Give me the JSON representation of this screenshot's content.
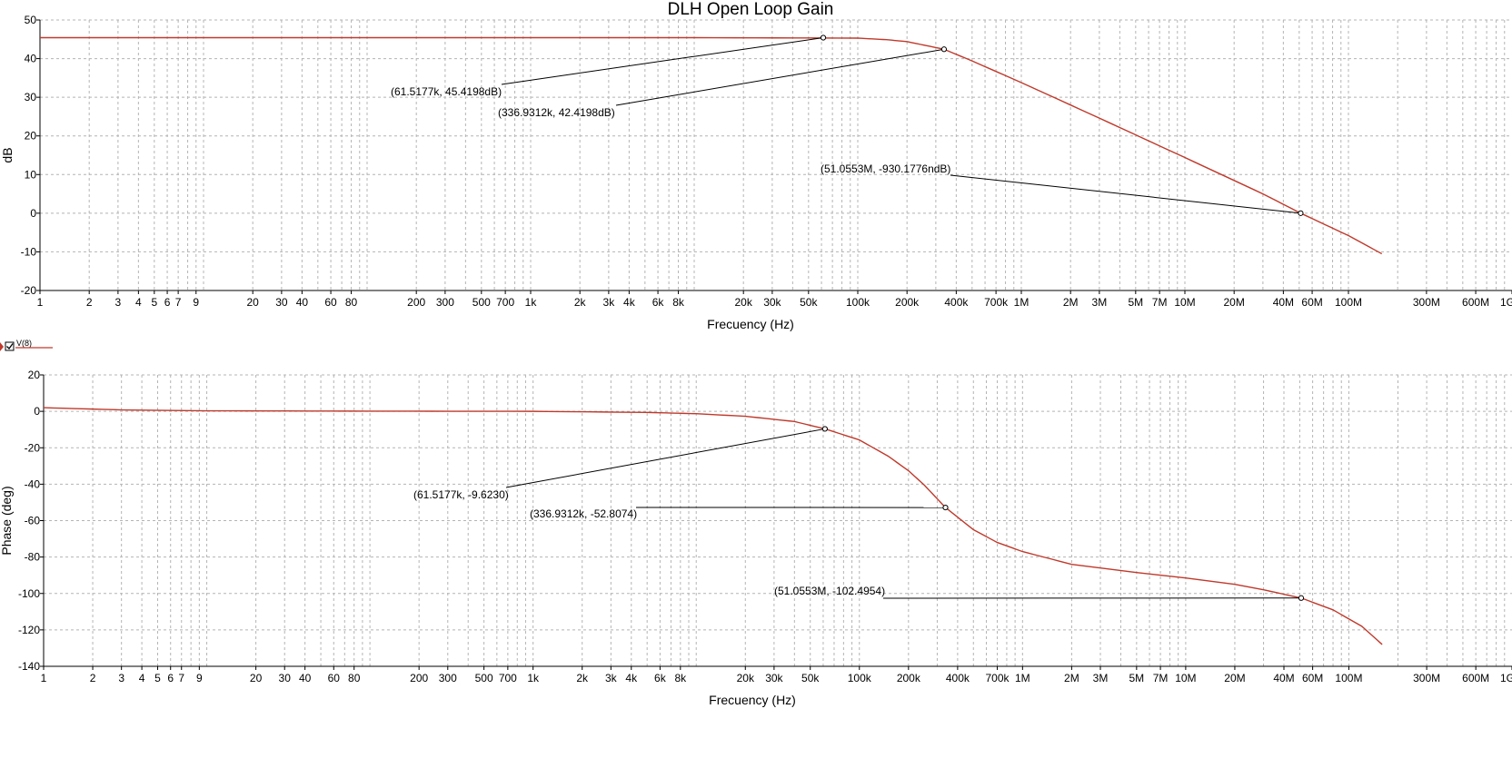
{
  "chart_data": [
    {
      "type": "line",
      "title": "DLH Open Loop Gain",
      "xlabel": "Frecuency (Hz)",
      "ylabel": "dB",
      "xscale": "log",
      "xlim": [
        1,
        1000000000
      ],
      "ylim": [
        -20,
        50
      ],
      "grid": true,
      "x_tick_values": [
        1,
        2,
        3,
        4,
        5,
        6,
        7,
        9,
        20,
        30,
        40,
        60,
        80,
        200,
        300,
        500,
        700,
        1000,
        2000,
        3000,
        4000,
        6000,
        8000,
        20000,
        30000,
        50000,
        100000,
        200000,
        400000,
        700000,
        1000000,
        2000000,
        3000000,
        5000000,
        7000000,
        10000000,
        20000000,
        40000000,
        60000000,
        100000000,
        300000000,
        600000000,
        1000000000
      ],
      "x_tick_labels": [
        "1",
        "2",
        "3",
        "4",
        "5",
        "6",
        "7",
        "9",
        "20",
        "30",
        "40",
        "60",
        "80",
        "200",
        "300",
        "500",
        "700",
        "1k",
        "2k",
        "3k",
        "4k",
        "6k",
        "8k",
        "20k",
        "30k",
        "50k",
        "100k",
        "200k",
        "400k",
        "700k",
        "1M",
        "2M",
        "3M",
        "5M",
        "7M",
        "10M",
        "20M",
        "40M",
        "60M",
        "100M",
        "300M",
        "600M",
        "1G"
      ],
      "y_tick_values": [
        50,
        40,
        30,
        20,
        10,
        0,
        -10,
        -20
      ],
      "y_tick_labels": [
        "50",
        "40",
        "30",
        "20",
        "10",
        "0",
        "-10",
        "-20"
      ],
      "series": [
        {
          "name": "V(8)",
          "color": "#c0392b",
          "x": [
            1,
            10,
            100,
            1000,
            10000,
            100000,
            150000,
            200000,
            336931,
            500000,
            1000000,
            3000000,
            10000000,
            30000000,
            51055300,
            100000000,
            160000000
          ],
          "values": [
            45.42,
            45.42,
            45.42,
            45.42,
            45.42,
            45.3,
            44.9,
            44.4,
            42.42,
            39.4,
            33.8,
            24.6,
            14.4,
            5.0,
            0.0,
            -5.8,
            -10.5
          ]
        }
      ],
      "annotations": [
        {
          "x": 61517.7,
          "y": 45.4198,
          "label": "(61.5177k, 45.4198dB)"
        },
        {
          "x": 336931.2,
          "y": 42.4198,
          "label": "(336.9312k, 42.4198dB)"
        },
        {
          "x": 51055300,
          "y": 0,
          "label": "(51.0553M, -930.1776ndB)"
        }
      ],
      "legend": {
        "entries": [
          "V(8)"
        ],
        "placement": "bottom-left"
      }
    },
    {
      "type": "line",
      "title": "",
      "xlabel": "Frecuency (Hz)",
      "ylabel": "Phase (deg)",
      "xscale": "log",
      "xlim": [
        1,
        1000000000
      ],
      "ylim": [
        -140,
        20
      ],
      "grid": true,
      "x_tick_values": [
        1,
        2,
        3,
        4,
        5,
        6,
        7,
        9,
        20,
        30,
        40,
        60,
        80,
        200,
        300,
        500,
        700,
        1000,
        2000,
        3000,
        4000,
        6000,
        8000,
        20000,
        30000,
        50000,
        100000,
        200000,
        400000,
        700000,
        1000000,
        2000000,
        3000000,
        5000000,
        7000000,
        10000000,
        20000000,
        40000000,
        60000000,
        100000000,
        300000000,
        600000000,
        1000000000
      ],
      "x_tick_labels": [
        "1",
        "2",
        "3",
        "4",
        "5",
        "6",
        "7",
        "9",
        "20",
        "30",
        "40",
        "60",
        "80",
        "200",
        "300",
        "500",
        "700",
        "1k",
        "2k",
        "3k",
        "4k",
        "6k",
        "8k",
        "20k",
        "30k",
        "50k",
        "100k",
        "200k",
        "400k",
        "700k",
        "1M",
        "2M",
        "3M",
        "5M",
        "7M",
        "10M",
        "20M",
        "40M",
        "60M",
        "100M",
        "300M",
        "600M",
        "1G"
      ],
      "y_tick_values": [
        20,
        0,
        -20,
        -40,
        -60,
        -80,
        -100,
        -120,
        -140
      ],
      "y_tick_labels": [
        "20",
        "0",
        "-20",
        "-40",
        "-60",
        "-80",
        "-100",
        "-120",
        "-140"
      ],
      "series": [
        {
          "name": "V(8)",
          "color": "#c0392b",
          "x": [
            1,
            3,
            10,
            100,
            1000,
            5000,
            10000,
            20000,
            40000,
            61517.7,
            100000,
            150000,
            200000,
            250000,
            336931.2,
            500000,
            700000,
            1000000,
            2000000,
            5000000,
            10000000,
            20000000,
            30000000,
            51055300,
            80000000,
            120000000,
            160000000
          ],
          "values": [
            2.0,
            0.8,
            0.3,
            0.1,
            0.0,
            -0.6,
            -1.3,
            -2.7,
            -5.6,
            -9.62,
            -15.7,
            -24.6,
            -32.6,
            -40.5,
            -52.8,
            -65.0,
            -72.0,
            -77.0,
            -84.0,
            -88.5,
            -91.5,
            -95.0,
            -98.0,
            -102.5,
            -109.0,
            -118.0,
            -128.0
          ]
        }
      ],
      "annotations": [
        {
          "x": 61517.7,
          "y": -9.623,
          "label": "(61.5177k, -9.6230)"
        },
        {
          "x": 336931.2,
          "y": -52.8074,
          "label": "(336.9312k, -52.8074)"
        },
        {
          "x": 51055300,
          "y": -102.4954,
          "label": "(51.0553M, -102.4954)"
        }
      ]
    }
  ]
}
